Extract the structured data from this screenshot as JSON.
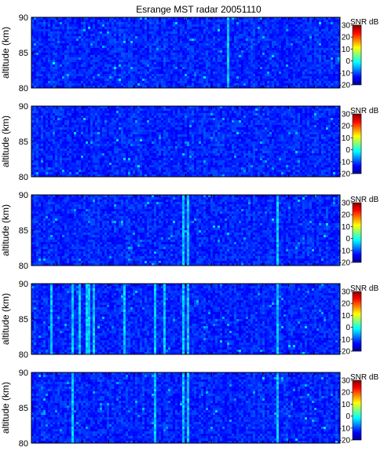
{
  "figure": {
    "title": "Esrange MST radar 20051110"
  },
  "chart_data": {
    "type": "heatmap",
    "title": "Esrange MST radar 20051110",
    "panels": [
      {
        "ylabel": "altitude (km)",
        "ylim": [
          80,
          90
        ],
        "yticks": [
          "90",
          "85",
          "80"
        ],
        "colorbar_label": "SNR dB",
        "clim": [
          -20,
          30
        ],
        "colorbar_ticks": [
          "30",
          "20",
          "10",
          "0",
          "-10",
          "-20"
        ],
        "stripes": [
          0.64
        ]
      },
      {
        "ylabel": "altitude (km)",
        "ylim": [
          80,
          90
        ],
        "yticks": [
          "90",
          "85",
          "80"
        ],
        "colorbar_label": "SNR dB",
        "clim": [
          -20,
          30
        ],
        "colorbar_ticks": [
          "30",
          "20",
          "10",
          "0",
          "-10",
          "-20"
        ],
        "stripes": []
      },
      {
        "ylabel": "altitude (km)",
        "ylim": [
          80,
          90
        ],
        "yticks": [
          "90",
          "85",
          "80"
        ],
        "colorbar_label": "SNR dB",
        "clim": [
          -20,
          30
        ],
        "colorbar_ticks": [
          "30",
          "20",
          "10",
          "0",
          "-10",
          "-20"
        ],
        "stripes": [
          0.495,
          0.505,
          0.8
        ]
      },
      {
        "ylabel": "altitude (km)",
        "ylim": [
          80,
          90
        ],
        "yticks": [
          "90",
          "85",
          "80"
        ],
        "colorbar_label": "SNR dB",
        "clim": [
          -20,
          30
        ],
        "colorbar_ticks": [
          "30",
          "20",
          "10",
          "0",
          "-10",
          "-20"
        ],
        "stripes": [
          0.06,
          0.13,
          0.155,
          0.175,
          0.185,
          0.2,
          0.3,
          0.4,
          0.43,
          0.495,
          0.505,
          0.8
        ]
      },
      {
        "ylabel": "altitude (km)",
        "ylim": [
          80,
          90
        ],
        "yticks": [
          "90",
          "85",
          "80"
        ],
        "colorbar_label": "SNR dB",
        "clim": [
          -20,
          30
        ],
        "colorbar_ticks": [
          "30",
          "20",
          "10",
          "0",
          "-10",
          "-20"
        ],
        "stripes": [
          0.13,
          0.4,
          0.495,
          0.505,
          0.8
        ]
      }
    ]
  }
}
